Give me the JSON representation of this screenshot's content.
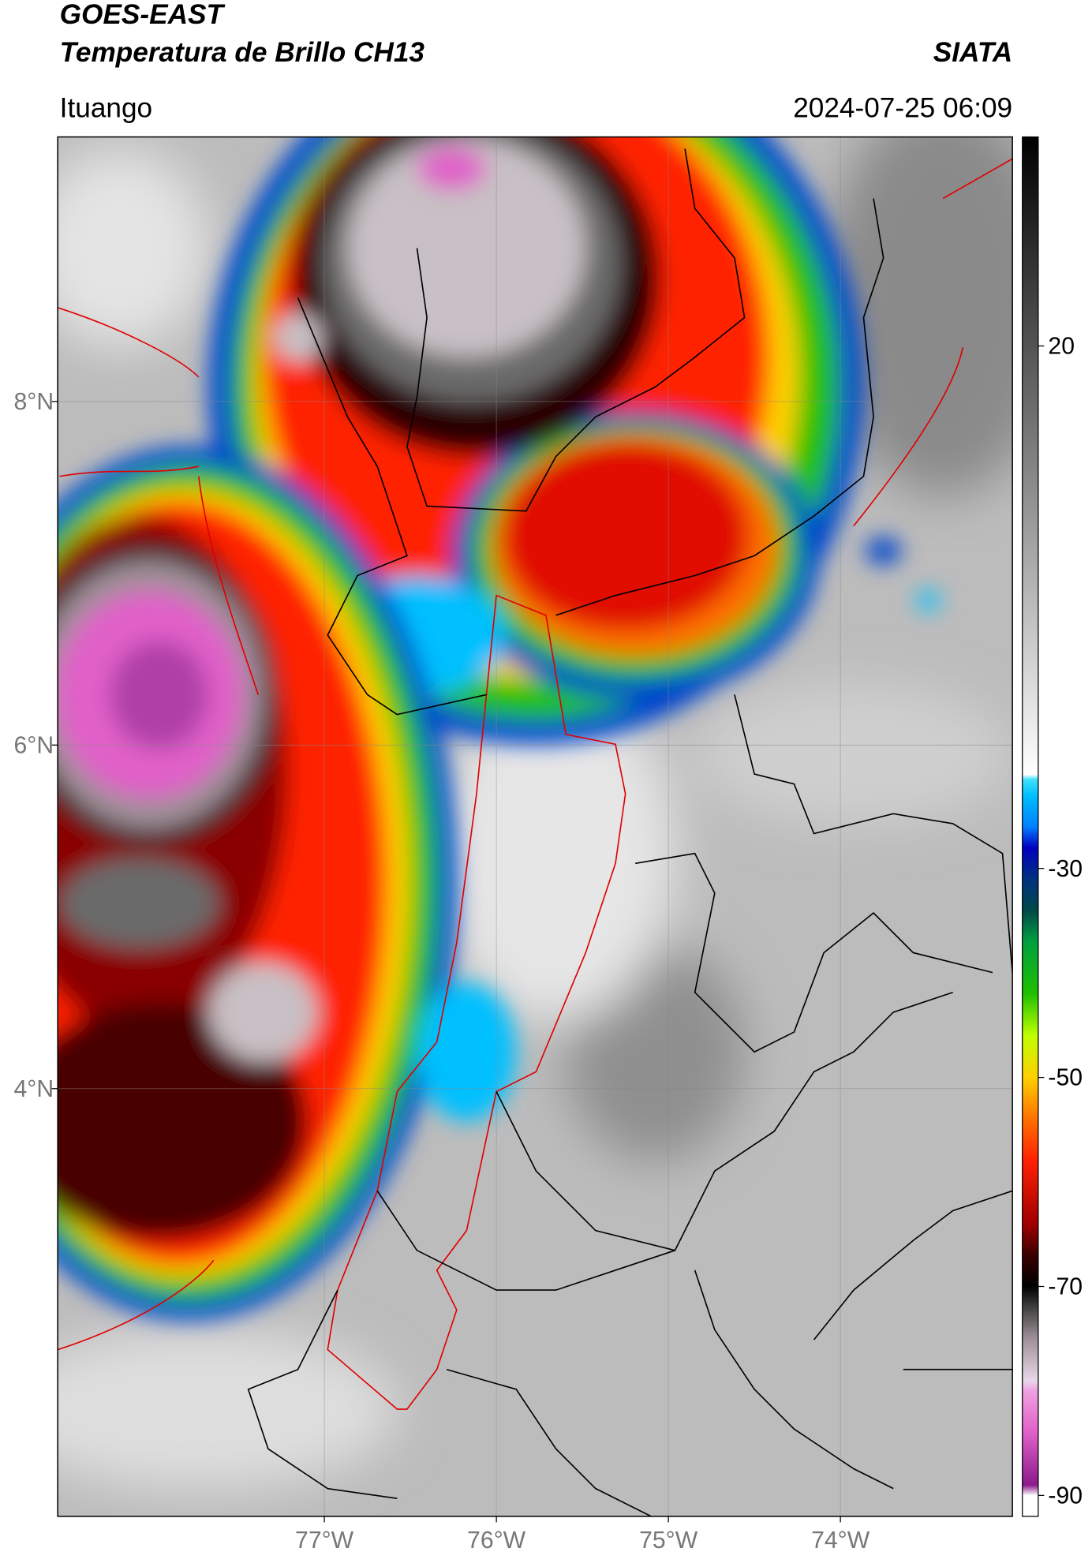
{
  "header": {
    "title": "GOES-EAST",
    "subtitle": "Temperatura de Brillo CH13",
    "agency": "SIATA",
    "location": "Ituango",
    "datetime": "2024-07-25 06:09"
  },
  "map": {
    "lonlim": [
      -78.55,
      -73.0
    ],
    "latlim": [
      1.51,
      9.54
    ],
    "lon_ticks": [
      {
        "value": -77,
        "label": "77°W"
      },
      {
        "value": -76,
        "label": "76°W"
      },
      {
        "value": -75,
        "label": "75°W"
      },
      {
        "value": -74,
        "label": "74°W"
      }
    ],
    "lat_ticks": [
      {
        "value": 4,
        "label": "4°N"
      },
      {
        "value": 6,
        "label": "6°N"
      },
      {
        "value": 8,
        "label": "8°N"
      }
    ]
  },
  "colorbar": {
    "lim": [
      -92,
      40
    ],
    "ticks": [
      20,
      -30,
      -50,
      -70,
      -90
    ],
    "colormap": [
      {
        "value": 40,
        "color": "#000000"
      },
      {
        "value": -21,
        "color": "#ffffff"
      },
      {
        "value": -21.5,
        "color": "#40e0ff"
      },
      {
        "value": -23,
        "color": "#00c0ff"
      },
      {
        "value": -26,
        "color": "#0080ff"
      },
      {
        "value": -28,
        "color": "#0000c0"
      },
      {
        "value": -31,
        "color": "#003080"
      },
      {
        "value": -34,
        "color": "#004848"
      },
      {
        "value": -37,
        "color": "#00a040"
      },
      {
        "value": -42,
        "color": "#20c000"
      },
      {
        "value": -46,
        "color": "#c0ff00"
      },
      {
        "value": -50,
        "color": "#ffd000"
      },
      {
        "value": -54,
        "color": "#ff7000"
      },
      {
        "value": -58,
        "color": "#ff2000"
      },
      {
        "value": -64,
        "color": "#a00000"
      },
      {
        "value": -67,
        "color": "#3a0000"
      },
      {
        "value": -70,
        "color": "#000000"
      },
      {
        "value": -72,
        "color": "#404040"
      },
      {
        "value": -75,
        "color": "#a09098"
      },
      {
        "value": -79,
        "color": "#e8d8e8"
      },
      {
        "value": -80,
        "color": "#f0a0e0"
      },
      {
        "value": -84,
        "color": "#e060c8"
      },
      {
        "value": -89,
        "color": "#8b1a8b"
      },
      {
        "value": -90,
        "color": "#ffffff"
      },
      {
        "value": -92,
        "color": "#ffffff"
      }
    ]
  }
}
